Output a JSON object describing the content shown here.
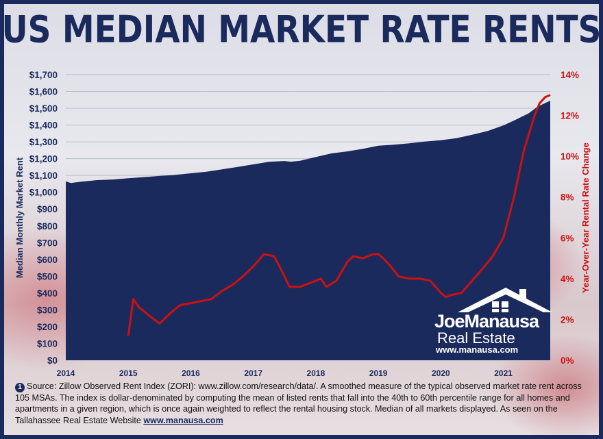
{
  "title": "US MEDIAN MARKET RATE RENTS",
  "colors": {
    "navy": "#1b2a5c",
    "red": "#cc1111"
  },
  "logo": {
    "name_part1": "Joe",
    "name_part2": "Manausa",
    "subtitle": "Real Estate",
    "url": "www.manausa.com"
  },
  "source": {
    "number": "1",
    "text": "Source: Zillow Observed Rent Index (ZORI): www.zillow.com/research/data/. A smoothed measure of the typical observed market rate rent across 105 MSAs. The index is dollar-denominated by computing the mean of listed rents that fall into the 40th to 60th percentile range for all homes and apartments in a given region, which is once again weighted to reflect the rental housing stock. Median of all markets displayed. As seen on the Tallahassee Real Estate Website ",
    "link": "www.manausa.com"
  },
  "chart_data": {
    "type": "area",
    "ylabel_left": "Median Monthly Market Rent",
    "ylabel_right": "Year-Over-Year Rental Rate Change",
    "xlim": [
      2014.0,
      2021.75
    ],
    "ylim_left": [
      0,
      1700
    ],
    "ylim_right": [
      0,
      14
    ],
    "x_ticks": [
      "2014",
      "2015",
      "2016",
      "2017",
      "2018",
      "2019",
      "2020",
      "2021"
    ],
    "y_left_ticks": [
      "$0",
      "$100",
      "$200",
      "$300",
      "$400",
      "$500",
      "$600",
      "$700",
      "$800",
      "$900",
      "$1,000",
      "$1,100",
      "$1,200",
      "$1,300",
      "$1,400",
      "$1,500",
      "$1,600",
      "$1,700"
    ],
    "y_right_ticks": [
      "0%",
      "2%",
      "4%",
      "6%",
      "8%",
      "10%",
      "12%",
      "14%"
    ],
    "grid": true,
    "series": [
      {
        "name": "Median Monthly Market Rent",
        "type": "area",
        "axis": "left",
        "x": [
          2014.0,
          2014.08,
          2014.25,
          2014.5,
          2014.75,
          2015.0,
          2015.25,
          2015.5,
          2015.75,
          2016.0,
          2016.25,
          2016.5,
          2016.75,
          2017.0,
          2017.25,
          2017.5,
          2017.6,
          2017.75,
          2018.0,
          2018.25,
          2018.5,
          2018.75,
          2019.0,
          2019.25,
          2019.5,
          2019.75,
          2020.0,
          2020.25,
          2020.5,
          2020.75,
          2021.0,
          2021.2,
          2021.4,
          2021.55,
          2021.65,
          2021.75
        ],
        "values": [
          1065,
          1055,
          1063,
          1072,
          1076,
          1083,
          1090,
          1097,
          1103,
          1113,
          1122,
          1136,
          1151,
          1166,
          1181,
          1186,
          1182,
          1187,
          1210,
          1231,
          1243,
          1258,
          1277,
          1283,
          1291,
          1302,
          1310,
          1322,
          1342,
          1365,
          1398,
          1432,
          1469,
          1510,
          1528,
          1545
        ]
      },
      {
        "name": "Year-Over-Year Rental Rate Change",
        "type": "line",
        "axis": "right",
        "x": [
          2015.0,
          2015.08,
          2015.17,
          2015.33,
          2015.5,
          2015.67,
          2015.83,
          2016.0,
          2016.17,
          2016.33,
          2016.5,
          2016.67,
          2016.83,
          2017.0,
          2017.17,
          2017.33,
          2017.42,
          2017.58,
          2017.75,
          2017.92,
          2018.08,
          2018.17,
          2018.33,
          2018.5,
          2018.6,
          2018.75,
          2018.92,
          2019.0,
          2019.08,
          2019.17,
          2019.33,
          2019.5,
          2019.67,
          2019.83,
          2020.0,
          2020.08,
          2020.17,
          2020.33,
          2020.5,
          2020.67,
          2020.83,
          2021.0,
          2021.17,
          2021.33,
          2021.5,
          2021.58,
          2021.67,
          2021.75
        ],
        "values": [
          1.2,
          3.0,
          2.6,
          2.2,
          1.8,
          2.3,
          2.7,
          2.8,
          2.9,
          3.0,
          3.4,
          3.7,
          4.1,
          4.6,
          5.2,
          5.1,
          4.6,
          3.6,
          3.6,
          3.8,
          4.0,
          3.6,
          3.9,
          4.8,
          5.1,
          5.0,
          5.2,
          5.2,
          5.0,
          4.7,
          4.1,
          4.0,
          4.0,
          3.9,
          3.3,
          3.1,
          3.2,
          3.3,
          3.9,
          4.5,
          5.1,
          6.0,
          8.0,
          10.3,
          12.0,
          12.6,
          12.9,
          13.0
        ]
      }
    ]
  }
}
